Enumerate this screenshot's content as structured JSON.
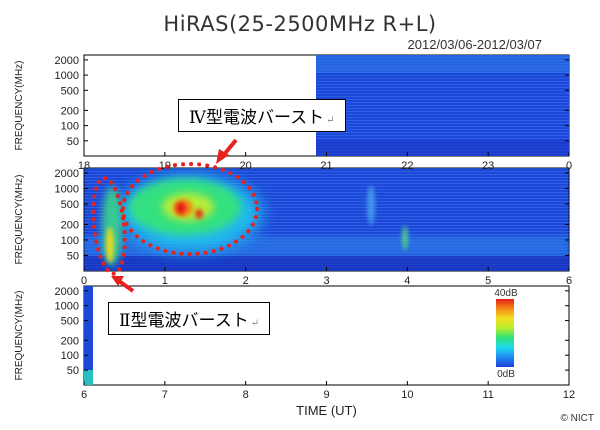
{
  "title": "HiRAS(25-2500MHz R+L)",
  "date_range": "2012/03/06-2012/03/07",
  "copyright": "© NICT",
  "annotations": {
    "type4_label": "Ⅳ型電波バースト",
    "type2_label": "Ⅱ型電波バースト",
    "return_mark": "↵",
    "marker_color": "#e8201e"
  },
  "colorbar": {
    "max_label": "40dB",
    "min_label": "0dB",
    "colors": [
      "#1a3fd8",
      "#1f8af0",
      "#20d8f0",
      "#2ee27a",
      "#b6ee30",
      "#f4e020",
      "#f58a18",
      "#e41e14"
    ]
  },
  "chart_data": [
    {
      "type": "heatmap",
      "panel": "top",
      "ylabel": "FREQUENCY(MHz)",
      "yscale": "log",
      "y_ticks": [
        "2000",
        "1000",
        "500",
        "200",
        "100",
        "50"
      ],
      "x_ticks": [
        "18",
        "19",
        "20",
        "21",
        "22",
        "23",
        "0"
      ],
      "x_range_hours": [
        18,
        24
      ],
      "data_start_hour": 20.9
    },
    {
      "type": "heatmap",
      "panel": "middle",
      "ylabel": "FREQUENCY(MHz)",
      "yscale": "log",
      "y_ticks": [
        "2000",
        "1000",
        "500",
        "200",
        "100",
        "50"
      ],
      "x_ticks": [
        "0",
        "1",
        "2",
        "3",
        "4",
        "5",
        "6"
      ],
      "x_range_hours": [
        0,
        6
      ]
    },
    {
      "type": "heatmap",
      "panel": "bottom",
      "ylabel": "FREQUENCY(MHz)",
      "xlabel": "TIME (UT)",
      "yscale": "log",
      "y_ticks": [
        "2000",
        "1000",
        "500",
        "200",
        "100",
        "50"
      ],
      "x_ticks": [
        "6",
        "7",
        "8",
        "9",
        "10",
        "11",
        "12"
      ],
      "x_range_hours": [
        6,
        12
      ],
      "data_end_hour": 6.1
    }
  ]
}
